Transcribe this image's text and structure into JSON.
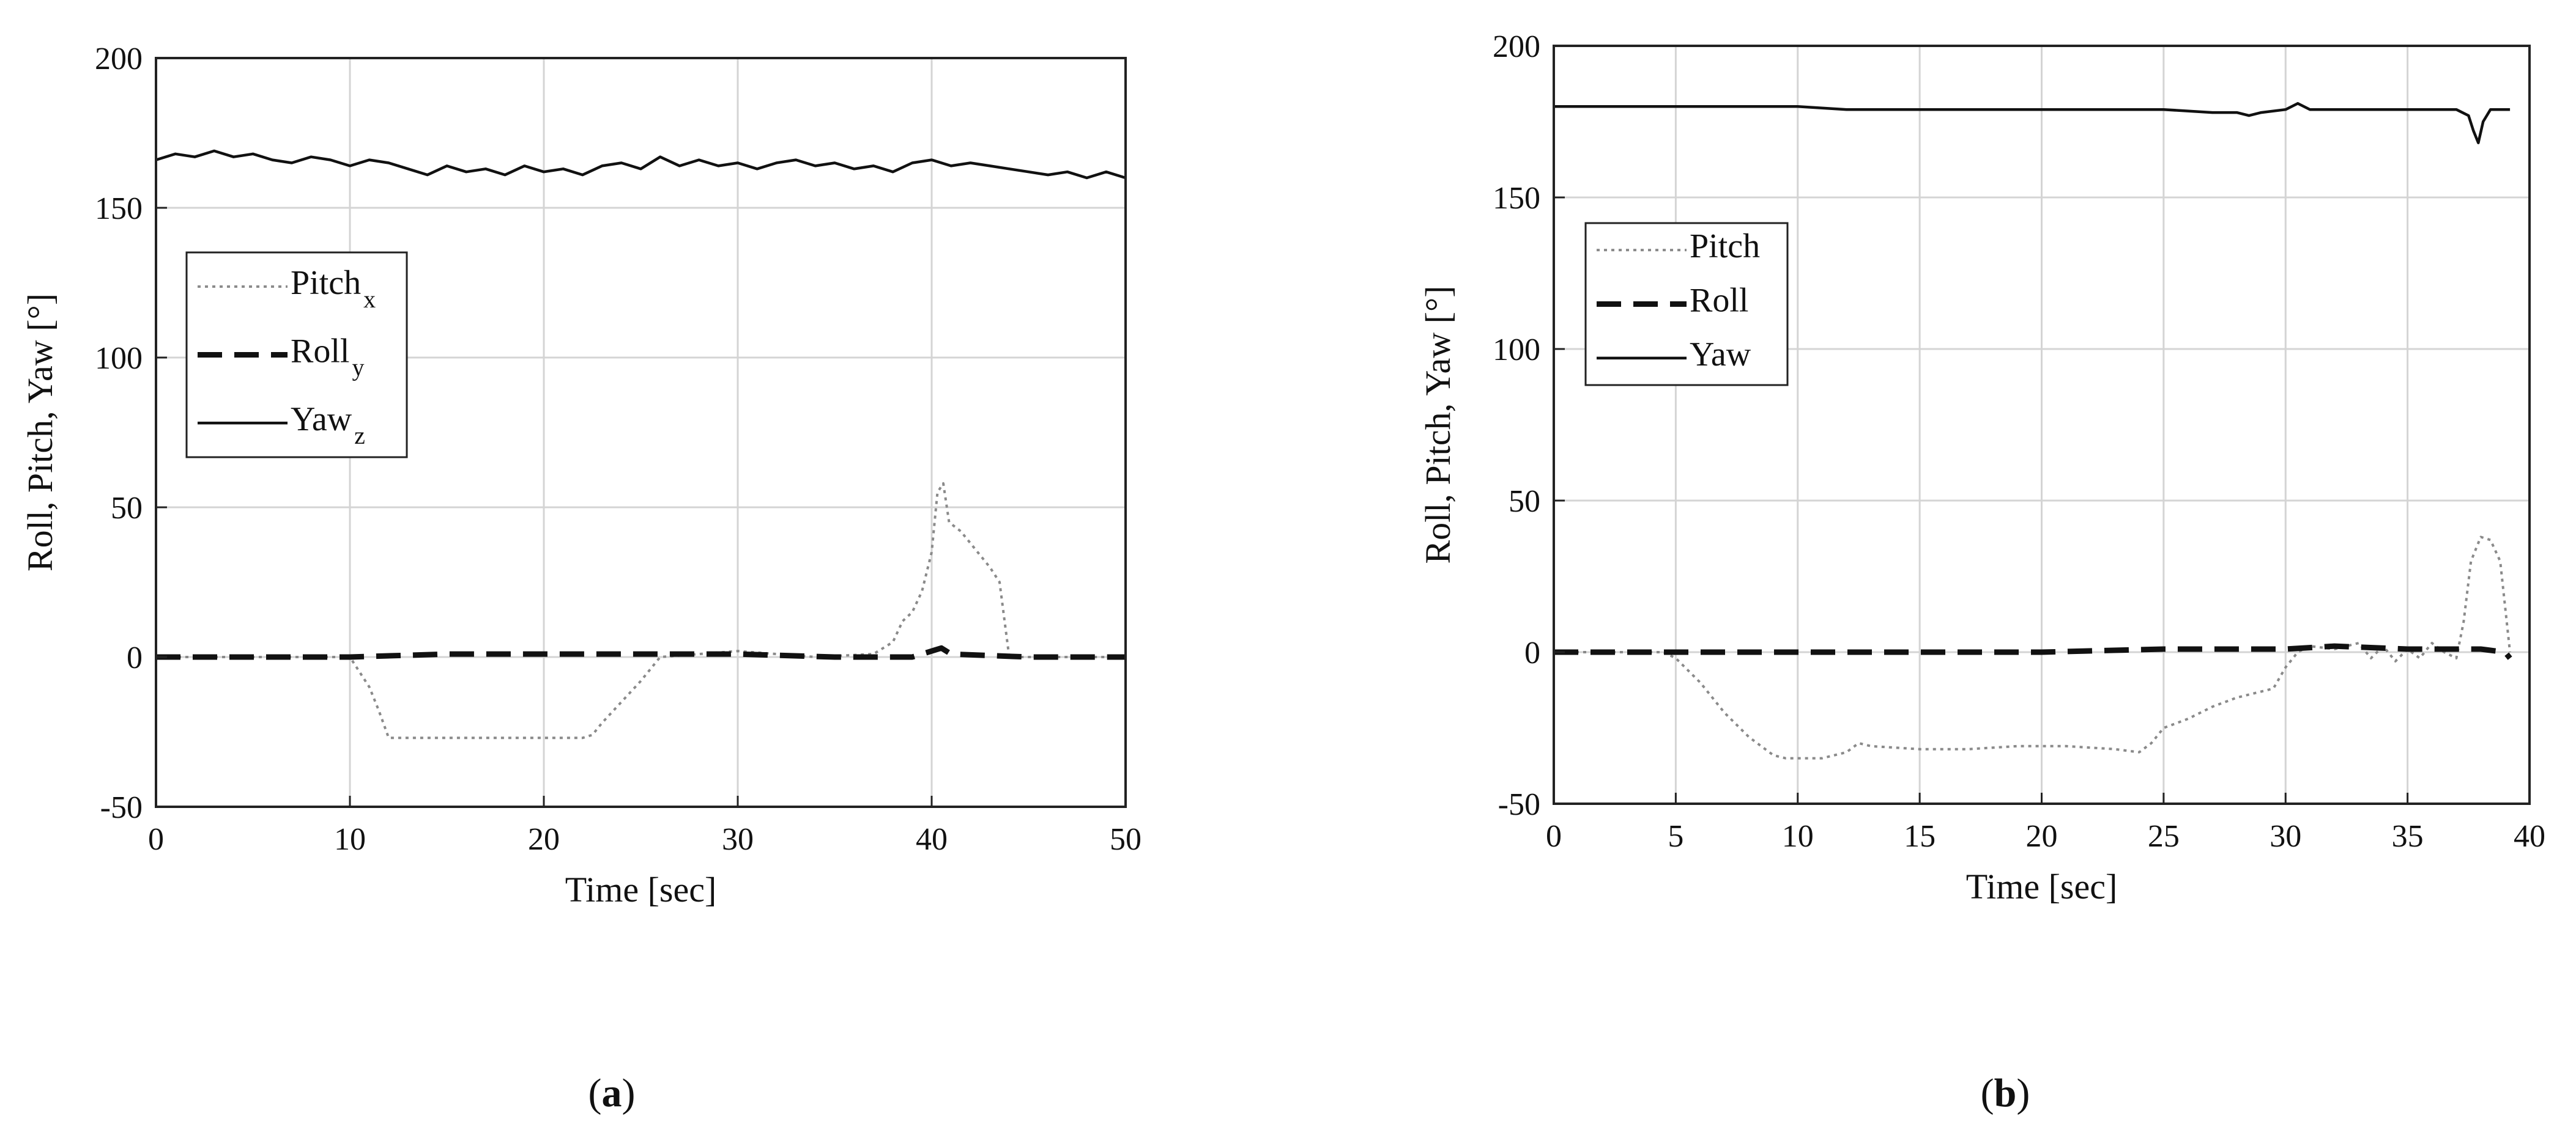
{
  "panels": [
    {
      "caption_open": "(",
      "caption_letter": "a",
      "caption_close": ")"
    },
    {
      "caption_open": "(",
      "caption_letter": "b",
      "caption_close": ")"
    }
  ],
  "chart_data": [
    {
      "type": "line",
      "title": "",
      "xlabel": "Time [sec]",
      "ylabel": "Roll, Pitch, Yaw  [°]",
      "xlim": [
        0,
        50
      ],
      "ylim": [
        -50,
        200
      ],
      "xticks": [
        0,
        10,
        20,
        30,
        40,
        50
      ],
      "yticks": [
        -50,
        0,
        50,
        100,
        150,
        200
      ],
      "grid": true,
      "legend_position": "middle-left",
      "series": [
        {
          "name": "Pitch",
          "name_sub": "x",
          "style": "dotted",
          "color": "#8a8a8a",
          "x": [
            0,
            10,
            10.3,
            11,
            11.5,
            12,
            14,
            16,
            18,
            20,
            22,
            22.5,
            23,
            24,
            25,
            26,
            30,
            34,
            37,
            38,
            38.5,
            39,
            39.5,
            40,
            40.3,
            40.6,
            40.9,
            41.5,
            42,
            43,
            43.5,
            44,
            45,
            48,
            50
          ],
          "y": [
            0,
            0,
            -3,
            -10,
            -18,
            -27,
            -27,
            -27,
            -27,
            -27,
            -27,
            -26,
            -22,
            -15,
            -8,
            0,
            2,
            0,
            1,
            5,
            12,
            15,
            22,
            35,
            55,
            58,
            45,
            42,
            38,
            30,
            25,
            0,
            0,
            0,
            0
          ]
        },
        {
          "name": "Roll",
          "name_sub": "y",
          "style": "dashed",
          "color": "#111111",
          "x": [
            0,
            5,
            10,
            15,
            20,
            25,
            30,
            35,
            39,
            40,
            40.5,
            41,
            45,
            50
          ],
          "y": [
            0,
            0,
            0,
            1,
            1,
            1,
            1,
            0,
            0,
            2,
            3,
            1,
            0,
            0
          ]
        },
        {
          "name": "Yaw",
          "name_sub": "z",
          "style": "solid",
          "color": "#111111",
          "x": [
            0,
            1,
            2,
            3,
            4,
            5,
            6,
            7,
            8,
            9,
            10,
            11,
            12,
            13,
            14,
            15,
            16,
            17,
            18,
            19,
            20,
            21,
            22,
            23,
            24,
            25,
            26,
            27,
            28,
            29,
            30,
            31,
            32,
            33,
            34,
            35,
            36,
            37,
            38,
            39,
            40,
            41,
            42,
            43,
            44,
            45,
            46,
            47,
            48,
            49,
            50
          ],
          "y": [
            166,
            168,
            167,
            169,
            167,
            168,
            166,
            165,
            167,
            166,
            164,
            166,
            165,
            163,
            161,
            164,
            162,
            163,
            161,
            164,
            162,
            163,
            161,
            164,
            165,
            163,
            167,
            164,
            166,
            164,
            165,
            163,
            165,
            166,
            164,
            165,
            163,
            164,
            162,
            165,
            166,
            164,
            165,
            164,
            163,
            162,
            161,
            162,
            160,
            162,
            160
          ]
        }
      ]
    },
    {
      "type": "line",
      "title": "",
      "xlabel": "Time [sec]",
      "ylabel": "Roll, Pitch, Yaw  [°]",
      "xlim": [
        0,
        40
      ],
      "ylim": [
        -50,
        200
      ],
      "xticks": [
        0,
        5,
        10,
        15,
        20,
        25,
        30,
        35,
        40
      ],
      "yticks": [
        -50,
        0,
        50,
        100,
        150,
        200
      ],
      "grid": true,
      "legend_position": "middle-left",
      "series": [
        {
          "name": "Pitch",
          "style": "dotted",
          "color": "#8a8a8a",
          "x": [
            0,
            4.5,
            5,
            6,
            7,
            8,
            9,
            9.5,
            10,
            11,
            12,
            12.5,
            13,
            15,
            17,
            19,
            21,
            23,
            24,
            24.5,
            25,
            26,
            27,
            28,
            28.5,
            29,
            29.5,
            30,
            30.5,
            31,
            32,
            33,
            33.5,
            34,
            34.5,
            35,
            35.5,
            36,
            36.5,
            37,
            37.3,
            37.6,
            38,
            38.4,
            38.8,
            39,
            39.2
          ],
          "y": [
            0,
            0,
            -2,
            -10,
            -20,
            -28,
            -34,
            -35,
            -35,
            -35,
            -33,
            -30,
            -31,
            -32,
            -32,
            -31,
            -31,
            -32,
            -33,
            -30,
            -25,
            -22,
            -18,
            -15,
            -14,
            -13,
            -12,
            -5,
            0,
            2,
            1,
            3,
            -2,
            2,
            -3,
            1,
            -2,
            3,
            0,
            -2,
            10,
            30,
            38,
            37,
            30,
            15,
            0
          ]
        },
        {
          "name": "Roll",
          "style": "dashed",
          "color": "#111111",
          "x": [
            0,
            5,
            10,
            15,
            20,
            25,
            28,
            30,
            32,
            35,
            37,
            38,
            39,
            39.2
          ],
          "y": [
            0,
            0,
            0,
            0,
            0,
            1,
            1,
            1,
            2,
            1,
            1,
            1,
            0,
            -2
          ]
        },
        {
          "name": "Yaw",
          "style": "solid",
          "color": "#111111",
          "x": [
            0,
            5,
            10,
            12,
            15,
            20,
            25,
            27,
            28,
            28.5,
            29,
            30,
            30.5,
            31,
            32,
            35,
            37,
            37.5,
            37.7,
            37.9,
            38.1,
            38.4,
            39,
            39.2
          ],
          "y": [
            180,
            180,
            180,
            179,
            179,
            179,
            179,
            178,
            178,
            177,
            178,
            179,
            181,
            179,
            179,
            179,
            179,
            177,
            172,
            168,
            175,
            179,
            179,
            179
          ]
        }
      ]
    }
  ]
}
